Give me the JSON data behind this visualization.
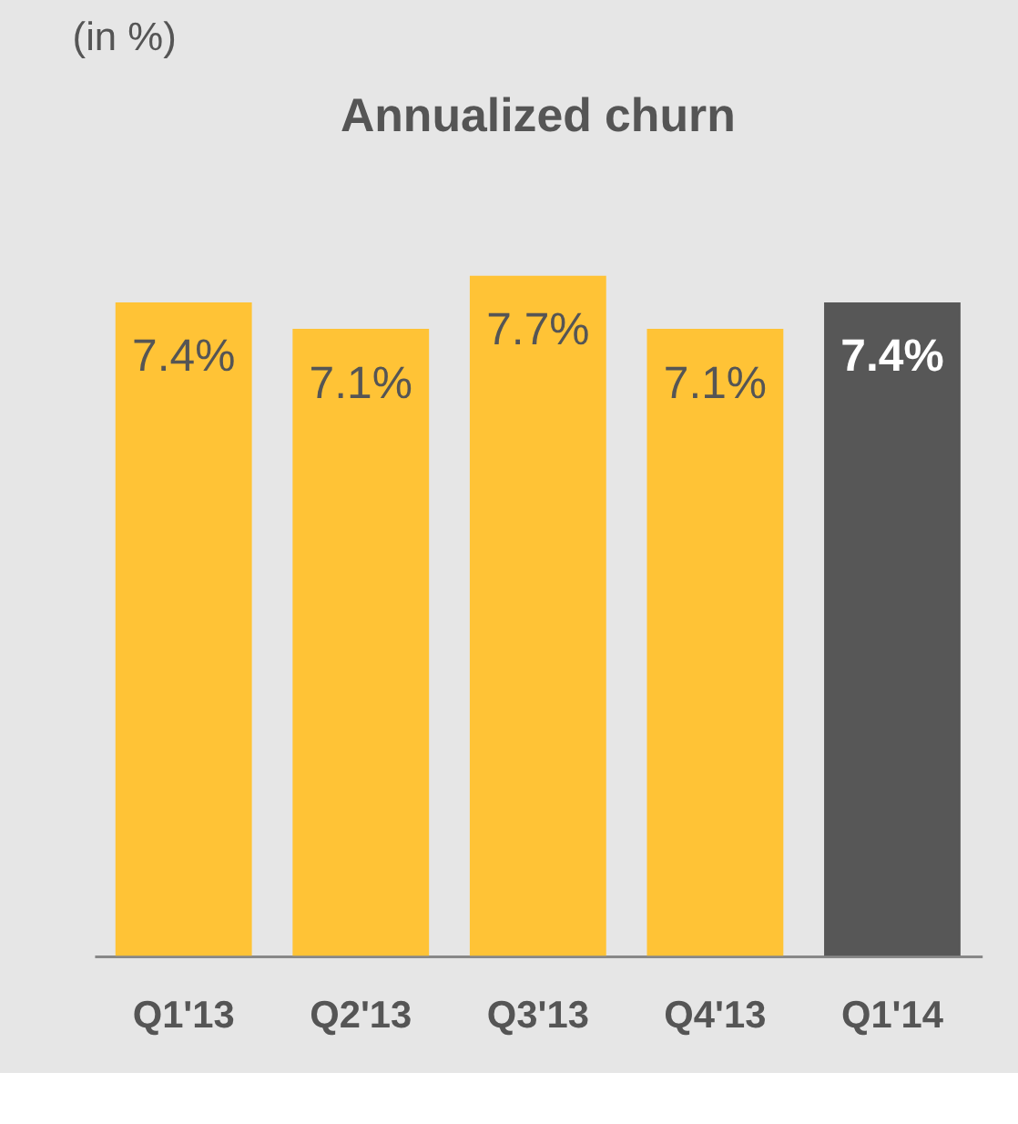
{
  "chart_data": {
    "type": "bar",
    "title": "Annualized churn",
    "annotations": [
      "(in %)"
    ],
    "categories": [
      "Q1'13",
      "Q2'13",
      "Q3'13",
      "Q4'13",
      "Q1'14"
    ],
    "values": [
      7.4,
      7.1,
      7.7,
      7.1,
      7.4
    ],
    "value_labels": [
      "7.4%",
      "7.1%",
      "7.7%",
      "7.1%",
      "7.4%"
    ],
    "colors": [
      "#ffc336",
      "#ffc336",
      "#ffc336",
      "#ffc336",
      "#575757"
    ],
    "grid": false
  }
}
